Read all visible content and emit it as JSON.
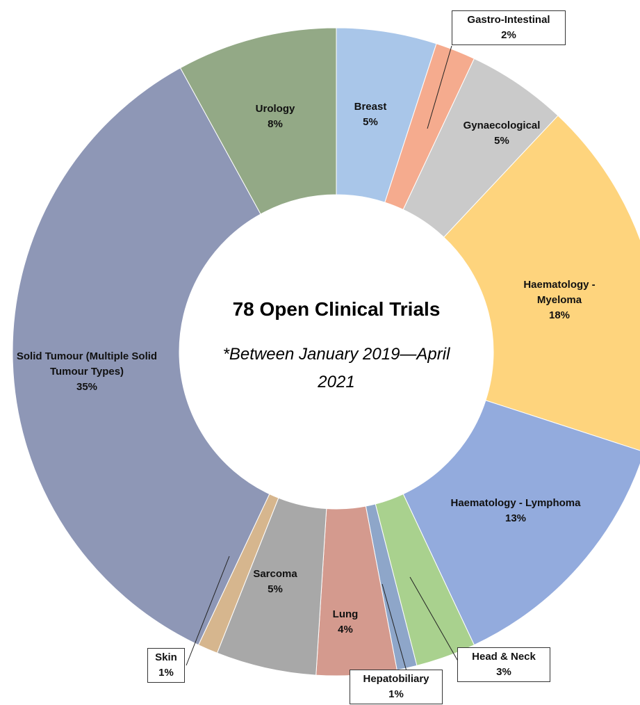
{
  "chart_data": {
    "type": "donut",
    "title": "78 Open Clinical Trials",
    "subtitle": "*Between January 2019—April 2021",
    "categories": [
      "Breast",
      "Gastro-Intestinal",
      "Gynaecological",
      "Haematology - Myeloma",
      "Haematology - Lymphoma",
      "Head & Neck",
      "Hepatobiliary",
      "Lung",
      "Sarcoma",
      "Skin",
      "Solid Tumour (Multiple Solid Tumour Types)",
      "Urology"
    ],
    "values": [
      5,
      2,
      5,
      18,
      13,
      3,
      1,
      4,
      5,
      1,
      35,
      8
    ],
    "value_labels": [
      "5%",
      "2%",
      "5%",
      "18%",
      "13%",
      "3%",
      "1%",
      "4%",
      "5%",
      "1%",
      "35%",
      "8%"
    ],
    "colors": [
      "#a9c6e9",
      "#f5ab8e",
      "#cacaca",
      "#fed47d",
      "#93abdd",
      "#a9d18e",
      "#8ea6c9",
      "#d49a8e",
      "#a8a8a8",
      "#d6b68e",
      "#8e97b6",
      "#93a986"
    ]
  }
}
